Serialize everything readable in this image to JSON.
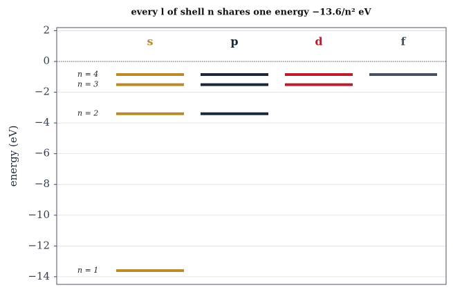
{
  "chart_data": {
    "type": "levels",
    "title": "every l of shell n shares one energy −13.6/n² eV",
    "y_label": "energy (eV)",
    "categories": [
      "s",
      "p",
      "d",
      "f"
    ],
    "category_colors": [
      "#bb8a2c",
      "#1b2838",
      "#b81e2e",
      "#465262"
    ],
    "series": [
      {
        "name": "n = 4",
        "values": [
          -0.85,
          -0.85,
          -0.85,
          -0.85
        ]
      },
      {
        "name": "n = 3",
        "values": [
          -1.511,
          -1.511,
          -1.511,
          null
        ]
      },
      {
        "name": "n = 2",
        "values": [
          -3.4,
          -3.4,
          null,
          null
        ]
      },
      {
        "name": "n = 1",
        "values": [
          -13.6,
          null,
          null,
          null
        ]
      }
    ],
    "reference_line": 0,
    "ylim": [
      -14.5,
      2.2
    ],
    "yticks": [
      {
        "value": -14,
        "label": "−14"
      },
      {
        "value": -12,
        "label": "−12"
      },
      {
        "value": -10,
        "label": "−10"
      },
      {
        "value": -8,
        "label": "−8"
      },
      {
        "value": -6,
        "label": "−6"
      },
      {
        "value": -4,
        "label": "−4"
      },
      {
        "value": -2,
        "label": "−2"
      },
      0,
      2
    ],
    "grid": true
  }
}
